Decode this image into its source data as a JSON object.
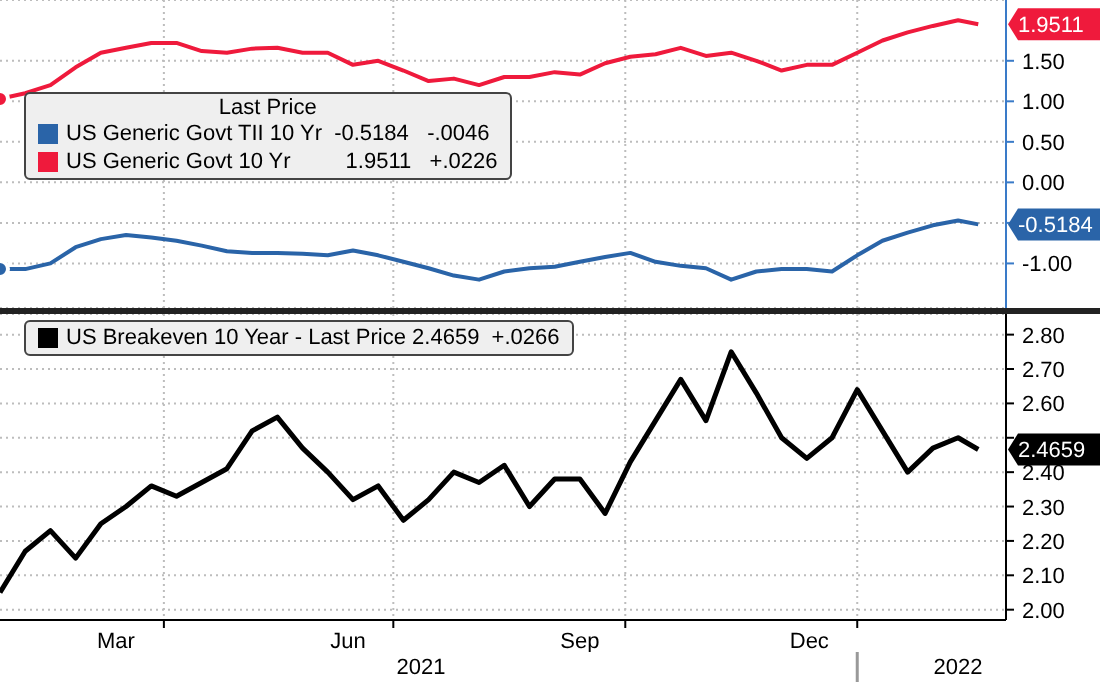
{
  "chart_data": [
    {
      "type": "line",
      "legend_title": "Last Price",
      "legend": "top left",
      "grid": true,
      "tick_labels": "y",
      "x": [
        "2021-01-26",
        "2021-02-05",
        "2021-02-15",
        "2021-02-25",
        "2021-03-07",
        "2021-03-17",
        "2021-03-27",
        "2021-04-06",
        "2021-04-16",
        "2021-04-26",
        "2021-05-06",
        "2021-05-16",
        "2021-05-26",
        "2021-06-05",
        "2021-06-15",
        "2021-06-25",
        "2021-07-05",
        "2021-07-15",
        "2021-07-25",
        "2021-08-04",
        "2021-08-14",
        "2021-08-24",
        "2021-09-03",
        "2021-09-13",
        "2021-09-23",
        "2021-10-03",
        "2021-10-13",
        "2021-10-23",
        "2021-11-02",
        "2021-11-12",
        "2021-11-22",
        "2021-12-02",
        "2021-12-12",
        "2021-12-22",
        "2022-01-01",
        "2022-01-11",
        "2022-01-21",
        "2022-01-31",
        "2022-02-10",
        "2022-02-18"
      ],
      "xlim": [
        "2021-01-26",
        "2022-03-01"
      ],
      "xticks": [
        {
          "value": "2021-04-01",
          "label": null
        },
        {
          "value": "2021-07-01",
          "label": null
        },
        {
          "value": "2021-10-01",
          "label": null
        },
        {
          "value": "2022-01-01",
          "label": null
        }
      ],
      "ylim": [
        -1.55,
        2.25
      ],
      "yticks": [
        {
          "value": -1,
          "label": "-1.00"
        },
        {
          "value": -0.5,
          "label": null
        },
        {
          "value": 0,
          "label": "0.00"
        },
        {
          "value": 0.5,
          "label": "0.50"
        },
        {
          "value": 1,
          "label": "1.00"
        },
        {
          "value": 1.5,
          "label": "1.50"
        }
      ],
      "series": [
        {
          "name": "US Generic Govt TII 10 Yr  -0.5184   -.0046",
          "color": "#2a64a8",
          "values": [
            -1.07,
            -1.07,
            -1.0,
            -0.8,
            -0.7,
            -0.65,
            -0.68,
            -0.72,
            -0.78,
            -0.85,
            -0.87,
            -0.87,
            -0.88,
            -0.9,
            -0.84,
            -0.9,
            -0.98,
            -1.06,
            -1.15,
            -1.2,
            -1.1,
            -1.06,
            -1.04,
            -0.98,
            -0.92,
            -0.87,
            -0.98,
            -1.03,
            -1.06,
            -1.2,
            -1.1,
            -1.07,
            -1.07,
            -1.1,
            -0.9,
            -0.72,
            -0.62,
            -0.53,
            -0.47,
            -0.5184
          ],
          "value_labels": [
            null,
            null,
            null,
            null,
            null,
            null,
            null,
            null,
            null,
            null,
            null,
            null,
            null,
            null,
            null,
            null,
            null,
            null,
            null,
            null,
            null,
            null,
            null,
            null,
            null,
            null,
            null,
            null,
            null,
            null,
            null,
            null,
            null,
            null,
            null,
            null,
            null,
            null,
            null,
            "-0.5184"
          ]
        },
        {
          "name": "US Generic Govt 10 Yr         1.9511   +.0226",
          "color": "#ef1a3c",
          "values": [
            1.03,
            1.1,
            1.2,
            1.42,
            1.6,
            1.66,
            1.72,
            1.72,
            1.62,
            1.6,
            1.65,
            1.66,
            1.6,
            1.6,
            1.45,
            1.5,
            1.38,
            1.25,
            1.28,
            1.2,
            1.3,
            1.3,
            1.36,
            1.33,
            1.47,
            1.55,
            1.58,
            1.66,
            1.56,
            1.6,
            1.5,
            1.38,
            1.45,
            1.45,
            1.6,
            1.75,
            1.85,
            1.93,
            2.0,
            1.9511
          ],
          "value_labels": [
            null,
            null,
            null,
            null,
            null,
            null,
            null,
            null,
            null,
            null,
            null,
            null,
            null,
            null,
            null,
            null,
            null,
            null,
            null,
            null,
            null,
            null,
            null,
            null,
            null,
            null,
            null,
            null,
            null,
            null,
            null,
            null,
            null,
            null,
            null,
            null,
            null,
            null,
            null,
            "1.9511"
          ]
        }
      ]
    },
    {
      "type": "line",
      "legend": "top left",
      "grid": true,
      "x": [
        "2021-01-26",
        "2021-02-05",
        "2021-02-15",
        "2021-02-25",
        "2021-03-07",
        "2021-03-17",
        "2021-03-27",
        "2021-04-06",
        "2021-04-16",
        "2021-04-26",
        "2021-05-06",
        "2021-05-16",
        "2021-05-26",
        "2021-06-05",
        "2021-06-15",
        "2021-06-25",
        "2021-07-05",
        "2021-07-15",
        "2021-07-25",
        "2021-08-04",
        "2021-08-14",
        "2021-08-24",
        "2021-09-03",
        "2021-09-13",
        "2021-09-23",
        "2021-10-03",
        "2021-10-13",
        "2021-10-23",
        "2021-11-02",
        "2021-11-12",
        "2021-11-22",
        "2021-12-02",
        "2021-12-12",
        "2021-12-22",
        "2022-01-01",
        "2022-01-11",
        "2022-01-21",
        "2022-01-31",
        "2022-02-10",
        "2022-02-18"
      ],
      "xlim": [
        "2021-01-26",
        "2022-03-01"
      ],
      "xticks": [
        {
          "value": "2021-03-13",
          "label": "Mar"
        },
        {
          "value": "2021-04-01",
          "label": null
        },
        {
          "value": "2021-06-13",
          "label": "Jun"
        },
        {
          "value": "2021-07-01",
          "label": null
        },
        {
          "value": "2021-09-13",
          "label": "Sep"
        },
        {
          "value": "2021-10-01",
          "label": null
        },
        {
          "value": "2021-12-13",
          "label": "Dec"
        },
        {
          "value": "2022-01-01",
          "label": null
        }
      ],
      "x2lim": [
        "2021-01-26",
        "2022-03-01"
      ],
      "x2ticks": [
        {
          "value": "2021-07-12",
          "label": "2021"
        },
        {
          "value": "2022-01-01",
          "label": null
        },
        {
          "value": "2022-02-10",
          "label": "2022"
        }
      ],
      "ylim": [
        1.97,
        2.86
      ],
      "yticks": [
        {
          "value": 2,
          "label": "2.00"
        },
        {
          "value": 2.1,
          "label": "2.10"
        },
        {
          "value": 2.2,
          "label": "2.20"
        },
        {
          "value": 2.3,
          "label": "2.30"
        },
        {
          "value": 2.4,
          "label": "2.40"
        },
        {
          "value": 2.5,
          "label": null
        },
        {
          "value": 2.6,
          "label": "2.60"
        },
        {
          "value": 2.7,
          "label": "2.70"
        },
        {
          "value": 2.8,
          "label": "2.80"
        }
      ],
      "series": [
        {
          "name": "US Breakeven 10 Year - Last Price 2.4659  +.0266",
          "color": "#000000",
          "values": [
            2.05,
            2.17,
            2.23,
            2.15,
            2.25,
            2.3,
            2.36,
            2.33,
            2.37,
            2.41,
            2.52,
            2.56,
            2.47,
            2.4,
            2.32,
            2.36,
            2.26,
            2.32,
            2.4,
            2.37,
            2.42,
            2.3,
            2.38,
            2.38,
            2.28,
            2.43,
            2.55,
            2.67,
            2.55,
            2.75,
            2.63,
            2.5,
            2.44,
            2.5,
            2.64,
            2.52,
            2.4,
            2.47,
            2.5,
            2.4659
          ],
          "value_labels": [
            null,
            null,
            null,
            null,
            null,
            null,
            null,
            null,
            null,
            null,
            null,
            null,
            null,
            null,
            null,
            null,
            null,
            null,
            null,
            null,
            null,
            null,
            null,
            null,
            null,
            null,
            null,
            null,
            null,
            null,
            null,
            null,
            null,
            null,
            null,
            null,
            null,
            null,
            null,
            "2.4659"
          ]
        }
      ]
    }
  ]
}
